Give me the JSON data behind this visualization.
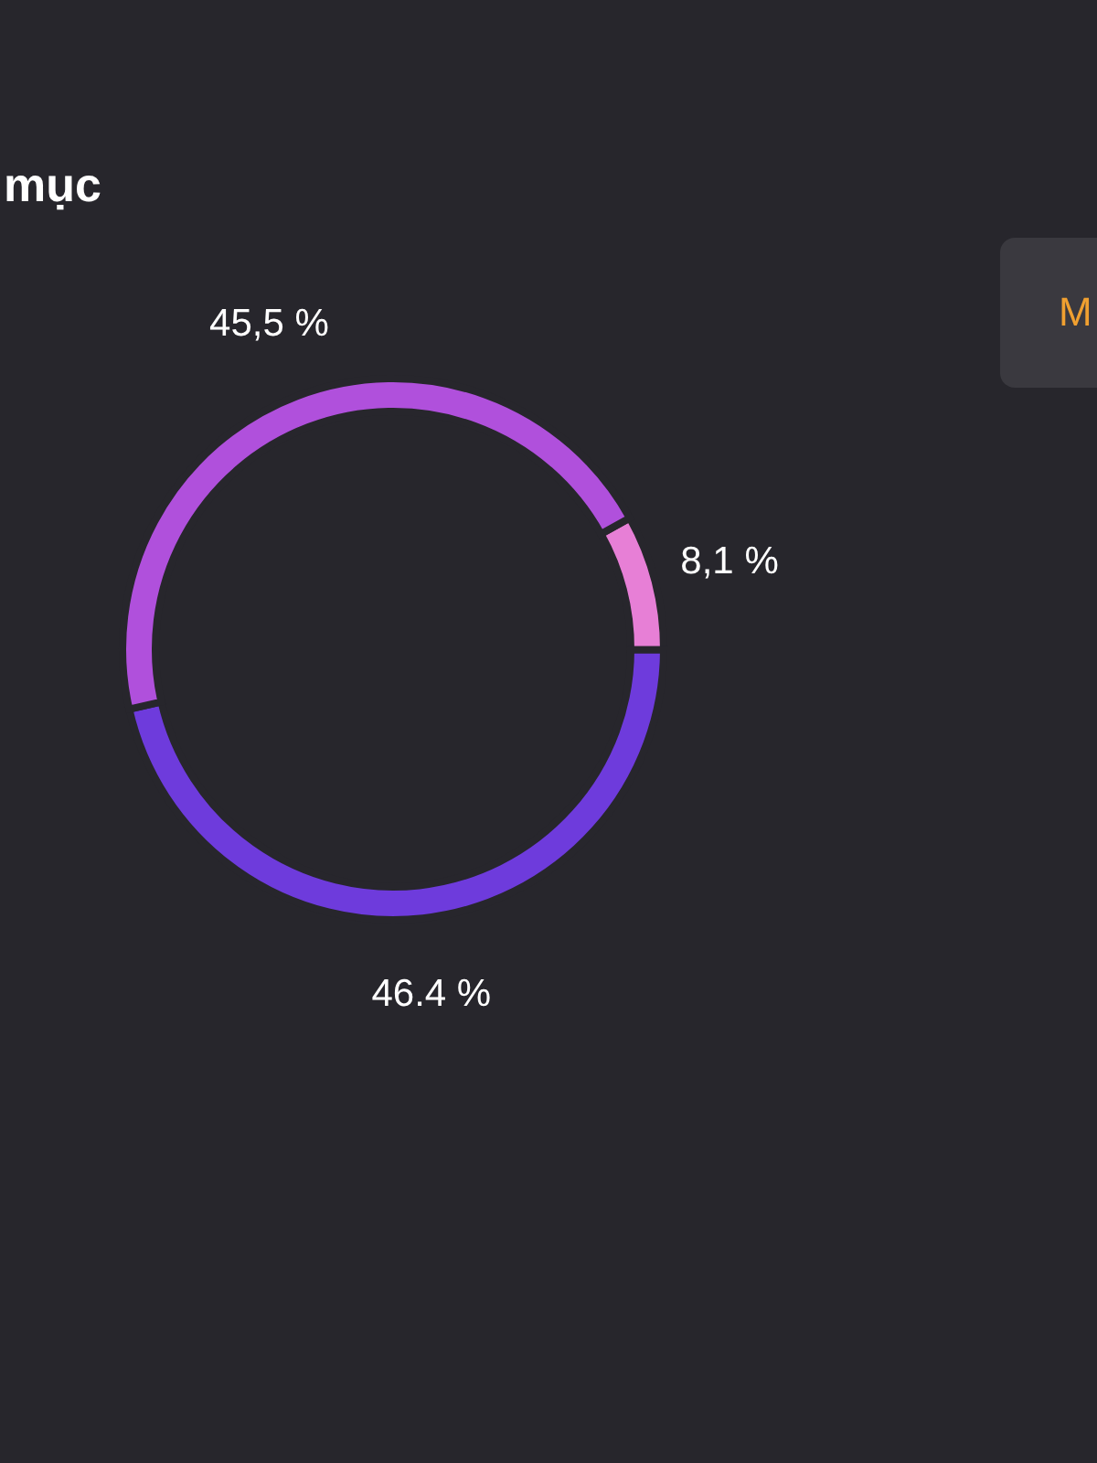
{
  "chart_data": {
    "type": "donut",
    "title": "mục",
    "categories": [
      null,
      null,
      null
    ],
    "values": [
      8.1,
      46.4,
      45.5
    ],
    "value_labels": [
      "8,1 %",
      "46.4 %",
      "45,5 %"
    ],
    "colors": [
      "#e77fd6",
      "#6e3bdc",
      "#b050dc"
    ],
    "annotations": [
      "M"
    ]
  }
}
